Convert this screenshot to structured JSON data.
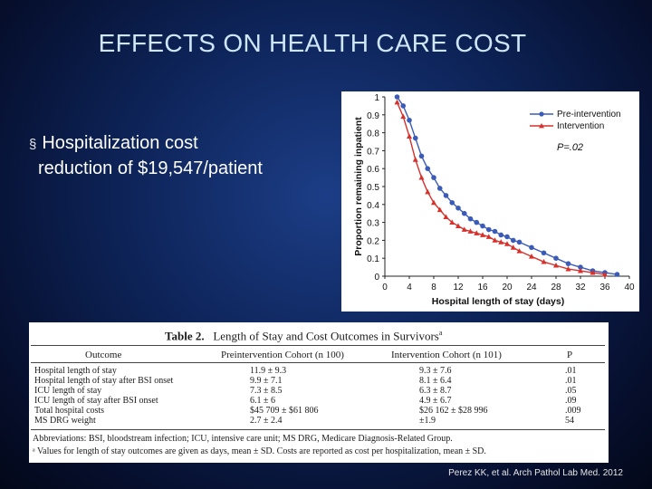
{
  "slide": {
    "title": "EFFECTS ON HEALTH CARE COST",
    "bullet_marker": "§",
    "bullet_line1": "Hospitalization cost",
    "bullet_line2": "reduction of $19,547/patient",
    "citation": "Perez KK, et al. Arch Pathol Lab Med. 2012"
  },
  "colors": {
    "pre": "#3b5bb8",
    "intervention": "#d6312b"
  },
  "chart_data": {
    "type": "line",
    "title": "",
    "xlabel": "Hospital length of stay (days)",
    "ylabel": "Proportion remaining inpatient",
    "xlim": [
      0,
      40
    ],
    "ylim": [
      0,
      1
    ],
    "x_ticks": [
      0,
      4,
      8,
      12,
      16,
      20,
      24,
      28,
      32,
      36,
      40
    ],
    "y_ticks": [
      0,
      0.1,
      0.2,
      0.3,
      0.4,
      0.5,
      0.6,
      0.7,
      0.8,
      0.9,
      1
    ],
    "annotation": "P=.02",
    "series": [
      {
        "name": "Pre-intervention",
        "x": [
          2,
          3,
          4,
          5,
          6,
          7,
          8,
          9,
          10,
          11,
          12,
          13,
          14,
          15,
          16,
          17,
          18,
          19,
          20,
          21,
          22,
          24,
          26,
          28,
          30,
          32,
          34,
          36,
          38
        ],
        "y": [
          1.0,
          0.95,
          0.87,
          0.77,
          0.67,
          0.6,
          0.55,
          0.49,
          0.45,
          0.41,
          0.38,
          0.35,
          0.32,
          0.3,
          0.28,
          0.26,
          0.25,
          0.23,
          0.22,
          0.2,
          0.19,
          0.16,
          0.13,
          0.1,
          0.07,
          0.05,
          0.03,
          0.02,
          0.01
        ]
      },
      {
        "name": "Intervention",
        "x": [
          2,
          3,
          4,
          5,
          6,
          7,
          8,
          9,
          10,
          11,
          12,
          13,
          14,
          15,
          16,
          17,
          18,
          19,
          20,
          21,
          22,
          24,
          26,
          28,
          30,
          32,
          34,
          36
        ],
        "y": [
          0.97,
          0.89,
          0.78,
          0.65,
          0.55,
          0.47,
          0.41,
          0.37,
          0.33,
          0.3,
          0.28,
          0.26,
          0.25,
          0.24,
          0.23,
          0.22,
          0.2,
          0.19,
          0.18,
          0.16,
          0.14,
          0.11,
          0.08,
          0.06,
          0.04,
          0.03,
          0.02,
          0.01
        ]
      }
    ]
  },
  "table": {
    "title_prefix": "Table 2.",
    "title_text": "Length of Stay and Cost Outcomes in Survivors",
    "title_sup": "a",
    "headers": [
      "Outcome",
      "Preintervention Cohort (n  100)",
      "Intervention Cohort (n  101)",
      "P"
    ],
    "rows": [
      [
        "Hospital length of stay",
        "11.9 ± 9.3",
        "9.3 ± 7.6",
        ".01"
      ],
      [
        "Hospital length of stay after BSI onset",
        "9.9 ± 7.1",
        "8.1 ± 6.4",
        ".01"
      ],
      [
        "ICU length of stay",
        "7.3 ± 8.5",
        "6.3 ± 8.7",
        ".05"
      ],
      [
        "ICU length of stay after BSI onset",
        "6.1 ± 6",
        "4.9 ± 6.7",
        ".09"
      ],
      [
        "Total hospital costs",
        "$45 709 ± $61 806",
        "$26 162 ± $28 996",
        ".009"
      ],
      [
        "MS DRG weight",
        "2.7 ± 2.4",
        "±1.9",
        "54"
      ]
    ],
    "footnote1": "Abbreviations: BSI, bloodstream infection; ICU, intensive care unit; MS DRG, Medicare Diagnosis-Related Group.",
    "footnote2": "ᵃ Values for length of stay outcomes are given as days, mean ± SD. Costs are reported as cost per hospitalization, mean ± SD."
  }
}
